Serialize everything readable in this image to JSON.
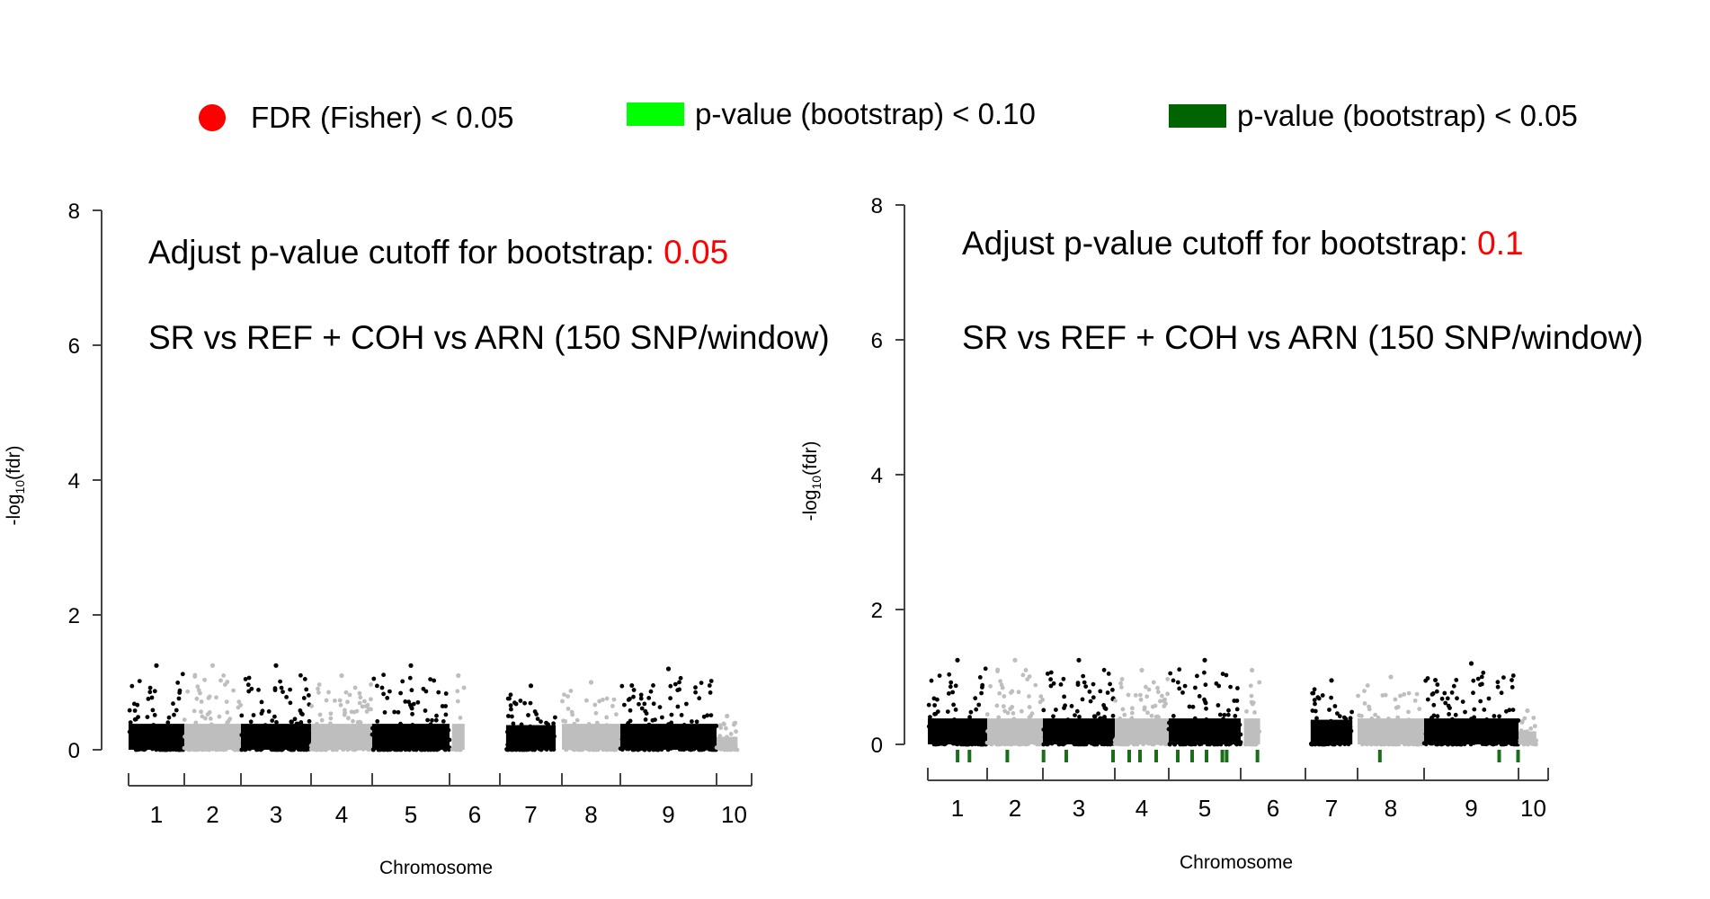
{
  "legend": [
    {
      "label": "FDR (Fisher) < 0.05",
      "color": "#ff0000",
      "shape": "dot"
    },
    {
      "label": "p-value (bootstrap) < 0.10",
      "color": "#00ff00",
      "shape": "rect"
    },
    {
      "label": "p-value (bootstrap) < 0.05",
      "color": "#006400",
      "shape": "rect"
    }
  ],
  "colors": {
    "odd_chromosome": "#000000",
    "even_chromosome": "#bebebe",
    "highlight": "#ff0000",
    "sig_marker": "#1a6e1a"
  },
  "chart_data": [
    {
      "type": "scatter",
      "title": "",
      "ylabel": "-log10(fdr)",
      "xlabel": "Chromosome",
      "ylim": [
        0,
        8
      ],
      "yticks": [
        0,
        2,
        4,
        6,
        8
      ],
      "chromosomes": [
        "1",
        "2",
        "3",
        "4",
        "5",
        "6",
        "7",
        "8",
        "9",
        "10"
      ],
      "annotation_prefix": "Adjust p-value cutoff for bootstrap: ",
      "annotation_value": "0.05",
      "annotation_subtitle": "SR vs REF + COH vs ARN (150 SNP/window)",
      "peaks": [
        {
          "chromosome": "1",
          "max_value": 1.25
        },
        {
          "chromosome": "2",
          "max_value": 1.25
        },
        {
          "chromosome": "3",
          "max_value": 1.25
        },
        {
          "chromosome": "4",
          "max_value": 1.1
        },
        {
          "chromosome": "5",
          "max_value": 1.25
        },
        {
          "chromosome": "6",
          "max_value": 1.1
        },
        {
          "chromosome": "7",
          "max_value": 0.95
        },
        {
          "chromosome": "8",
          "max_value": 1.0
        },
        {
          "chromosome": "9",
          "max_value": 1.2
        },
        {
          "chromosome": "10",
          "max_value": 0.5
        }
      ],
      "significant_markers": []
    },
    {
      "type": "scatter",
      "title": "",
      "ylabel": "-log10(fdr)",
      "xlabel": "Chromosome",
      "ylim": [
        0,
        8
      ],
      "yticks": [
        0,
        2,
        4,
        6,
        8
      ],
      "chromosomes": [
        "1",
        "2",
        "3",
        "4",
        "5",
        "6",
        "7",
        "8",
        "9",
        "10"
      ],
      "annotation_prefix": "Adjust p-value cutoff for bootstrap: ",
      "annotation_value": "0.1",
      "annotation_subtitle": "SR vs REF + COH vs ARN (150 SNP/window)",
      "peaks": [
        {
          "chromosome": "1",
          "max_value": 1.25
        },
        {
          "chromosome": "2",
          "max_value": 1.25
        },
        {
          "chromosome": "3",
          "max_value": 1.25
        },
        {
          "chromosome": "4",
          "max_value": 1.1
        },
        {
          "chromosome": "5",
          "max_value": 1.25
        },
        {
          "chromosome": "6",
          "max_value": 1.1
        },
        {
          "chromosome": "7",
          "max_value": 0.95
        },
        {
          "chromosome": "8",
          "max_value": 1.0
        },
        {
          "chromosome": "9",
          "max_value": 1.2
        },
        {
          "chromosome": "10",
          "max_value": 0.5
        }
      ],
      "significant_markers": [
        {
          "chromosome": "1",
          "fraction": 0.35
        },
        {
          "chromosome": "1",
          "fraction": 0.55
        },
        {
          "chromosome": "2",
          "fraction": 0.2
        },
        {
          "chromosome": "2",
          "fraction": 0.85
        },
        {
          "chromosome": "3",
          "fraction": 0.2
        },
        {
          "chromosome": "3",
          "fraction": 0.85
        },
        {
          "chromosome": "4",
          "fraction": 0.1
        },
        {
          "chromosome": "4",
          "fraction": 0.3
        },
        {
          "chromosome": "4",
          "fraction": 0.6
        },
        {
          "chromosome": "5",
          "fraction": 0.0
        },
        {
          "chromosome": "5",
          "fraction": 0.2
        },
        {
          "chromosome": "5",
          "fraction": 0.4
        },
        {
          "chromosome": "5",
          "fraction": 0.62
        },
        {
          "chromosome": "5",
          "fraction": 0.68
        },
        {
          "chromosome": "6",
          "fraction": 0.12
        },
        {
          "chromosome": "8",
          "fraction": 0.2
        },
        {
          "chromosome": "9",
          "fraction": 0.7
        },
        {
          "chromosome": "9",
          "fraction": 0.9
        }
      ]
    }
  ]
}
